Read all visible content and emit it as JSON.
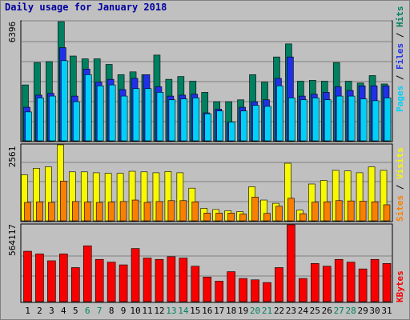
{
  "title": "Daily usage for January 2018",
  "colors": {
    "pages": "#00d0f8",
    "files": "#2030e8",
    "hits": "#008060",
    "visits": "#f8f800",
    "sites": "#f88000",
    "kbytes": "#f80000",
    "plot_bg": "#c0c0c0",
    "grid": "#808080",
    "weekend": "#008060",
    "weekday": "#000000"
  },
  "labels": {
    "top_max": "6396",
    "mid_max": "2561",
    "bottom_max": "564117",
    "pages": "Pages",
    "files": "Files",
    "hits": "Hits",
    "sites": "Sites",
    "visits": "Visits",
    "kbytes": "KBytes",
    "sep": " / "
  },
  "chart_data": {
    "type": "bar",
    "x": [
      1,
      2,
      3,
      4,
      5,
      6,
      7,
      8,
      9,
      10,
      11,
      12,
      13,
      14,
      15,
      16,
      17,
      18,
      19,
      20,
      21,
      22,
      23,
      24,
      25,
      26,
      27,
      28,
      29,
      30,
      31
    ],
    "weekend_days": [
      6,
      7,
      13,
      14,
      20,
      21,
      27,
      28
    ],
    "panels": [
      {
        "ymax": 6396,
        "series": [
          {
            "name": "Hits",
            "values": [
              3000,
              4200,
              4250,
              6396,
              4550,
              4400,
              4400,
              4100,
              3550,
              3700,
              3550,
              4600,
              3300,
              3450,
              3200,
              2600,
              2100,
              2100,
              2200,
              3550,
              3150,
              4500,
              5200,
              3200,
              3250,
              3200,
              4200,
              3200,
              3100,
              3500,
              3050
            ]
          },
          {
            "name": "Files",
            "values": [
              1800,
              2450,
              2550,
              5000,
              2400,
              3850,
              3150,
              3300,
              2750,
              3350,
              3550,
              2900,
              2400,
              2450,
              2500,
              1500,
              1700,
              1000,
              1800,
              2100,
              2200,
              3350,
              4500,
              2400,
              2500,
              2600,
              2900,
              2700,
              2950,
              2950,
              2950
            ]
          },
          {
            "name": "Pages",
            "values": [
              1550,
              2300,
              2400,
              4300,
              2100,
              3550,
              2950,
              3000,
              2400,
              2800,
              2800,
              2600,
              2200,
              2250,
              2300,
              1450,
              1600,
              1000,
              1600,
              1900,
              1850,
              2950,
              2300,
              2200,
              2300,
              2200,
              2400,
              2400,
              2250,
              2150,
              2300
            ]
          }
        ]
      },
      {
        "ymax": 2561,
        "series": [
          {
            "name": "Visits",
            "values": [
              1550,
              1770,
              1820,
              2561,
              1650,
              1650,
              1620,
              1600,
              1600,
              1670,
              1650,
              1620,
              1660,
              1620,
              1100,
              420,
              380,
              340,
              310,
              1150,
              700,
              590,
              1940,
              360,
              1240,
              1360,
              1700,
              1680,
              1620,
              1820,
              1700
            ]
          },
          {
            "name": "Sites",
            "values": [
              620,
              640,
              620,
              1340,
              650,
              630,
              620,
              630,
              650,
              700,
              620,
              650,
              680,
              680,
              640,
              260,
              260,
              260,
              230,
              800,
              250,
              490,
              760,
              240,
              630,
              640,
              680,
              670,
              660,
              640,
              540
            ]
          }
        ]
      },
      {
        "ymax": 564117,
        "series": [
          {
            "name": "KBytes",
            "values": [
              370000,
              350000,
              300000,
              350000,
              250000,
              410000,
              310000,
              290000,
              270000,
              390000,
              320000,
              310000,
              330000,
              320000,
              260000,
              180000,
              150000,
              220000,
              170000,
              160000,
              140000,
              250000,
              564117,
              170000,
              280000,
              260000,
              310000,
              290000,
              240000,
              310000,
              280000
            ]
          }
        ]
      }
    ]
  }
}
